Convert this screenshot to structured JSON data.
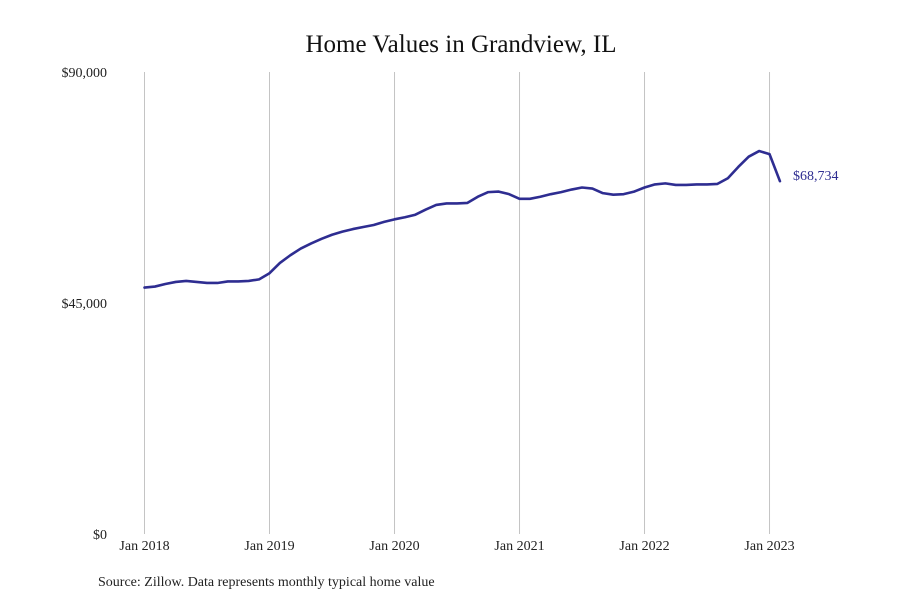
{
  "colors": {
    "series": "#2e2d91",
    "grid": "#c4c4c4",
    "text": "#222222"
  },
  "chart_data": {
    "type": "line",
    "title": "Home Values in Grandview, IL",
    "xlabel": "",
    "ylabel": "",
    "ylim": [
      0,
      90000
    ],
    "y_ticks": [
      {
        "value": 0,
        "label": "$0"
      },
      {
        "value": 45000,
        "label": "$45,000"
      },
      {
        "value": 90000,
        "label": "$90,000"
      }
    ],
    "x_ticks": [
      {
        "date": "2018-01",
        "label": "Jan 2018"
      },
      {
        "date": "2019-01",
        "label": "Jan 2019"
      },
      {
        "date": "2020-01",
        "label": "Jan 2020"
      },
      {
        "date": "2021-01",
        "label": "Jan 2021"
      },
      {
        "date": "2022-01",
        "label": "Jan 2022"
      },
      {
        "date": "2023-01",
        "label": "Jan 2023"
      }
    ],
    "x_range": [
      "2017-11",
      "2023-10"
    ],
    "grid": "vertical",
    "end_label": "$68,734",
    "series": [
      {
        "x": [
          "2018-01",
          "2018-02",
          "2018-03",
          "2018-04",
          "2018-05",
          "2018-06",
          "2018-07",
          "2018-08",
          "2018-09",
          "2018-10",
          "2018-11",
          "2018-12",
          "2019-01",
          "2019-02",
          "2019-03",
          "2019-04",
          "2019-05",
          "2019-06",
          "2019-07",
          "2019-08",
          "2019-09",
          "2019-10",
          "2019-11",
          "2019-12",
          "2020-01",
          "2020-02",
          "2020-03",
          "2020-04",
          "2020-05",
          "2020-06",
          "2020-07",
          "2020-08",
          "2020-09",
          "2020-10",
          "2020-11",
          "2020-12",
          "2021-01",
          "2021-02",
          "2021-03",
          "2021-04",
          "2021-05",
          "2021-06",
          "2021-07",
          "2021-08",
          "2021-09",
          "2021-10",
          "2021-11",
          "2021-12",
          "2022-01",
          "2022-02",
          "2022-03",
          "2022-04",
          "2022-05",
          "2022-06",
          "2022-07",
          "2022-08",
          "2022-09",
          "2022-10",
          "2022-11",
          "2022-12",
          "2023-01",
          "2023-02"
        ],
        "values": [
          48000,
          48200,
          48700,
          49100,
          49300,
          49100,
          48900,
          48900,
          49200,
          49200,
          49300,
          49600,
          50800,
          52800,
          54300,
          55600,
          56600,
          57500,
          58300,
          58900,
          59400,
          59800,
          60200,
          60800,
          61300,
          61700,
          62200,
          63200,
          64100,
          64400,
          64400,
          64500,
          65700,
          66600,
          66700,
          66200,
          65300,
          65300,
          65700,
          66200,
          66600,
          67100,
          67500,
          67300,
          66400,
          66100,
          66200,
          66700,
          67500,
          68100,
          68300,
          68000,
          68000,
          68100,
          68100,
          68200,
          69300,
          71500,
          73500,
          74600,
          74000,
          68734
        ]
      }
    ]
  },
  "footer": {
    "source": "Source: Zillow. Data represents monthly typical home value"
  }
}
